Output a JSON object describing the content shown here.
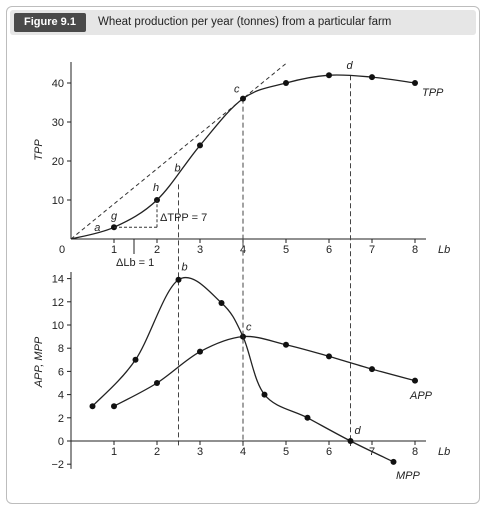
{
  "figure": {
    "label": "Figure 9.1",
    "title": "Wheat production per year (tonnes) from a particular farm"
  },
  "chart_data": [
    {
      "type": "line",
      "title": "",
      "ylabel": "TPP",
      "xlabel": "Lb",
      "xlim": [
        0,
        8.6
      ],
      "ylim": [
        0,
        45
      ],
      "xticks": [
        1,
        2,
        3,
        4,
        5,
        6,
        7,
        8
      ],
      "yticks": [
        10,
        20,
        30,
        40
      ],
      "origin_label": "0",
      "series": [
        {
          "name": "TPP",
          "x": [
            0,
            1,
            2,
            3,
            4,
            5,
            6,
            7,
            8
          ],
          "y": [
            0,
            3,
            10,
            24,
            36,
            40,
            42,
            41.5,
            40
          ]
        }
      ],
      "points": [
        {
          "label": "a",
          "x": 0.4,
          "y": 1
        },
        {
          "label": "g",
          "x": 1,
          "y": 3
        },
        {
          "label": "h",
          "x": 2,
          "y": 10
        },
        {
          "label": "b",
          "x": 2.5,
          "y": 16
        },
        {
          "label": "c",
          "x": 4,
          "y": 36
        },
        {
          "label": "d",
          "x": 6.5,
          "y": 42
        }
      ],
      "annotations": {
        "delta_tpp": "ΔTPP = 7",
        "delta_lb": "ΔLb = 1"
      }
    },
    {
      "type": "line",
      "title": "",
      "ylabel": "APP, MPP",
      "xlabel": "Lb",
      "xlim": [
        0,
        8.6
      ],
      "ylim": [
        -3,
        14.5
      ],
      "xticks": [
        1,
        2,
        3,
        4,
        5,
        6,
        7,
        8
      ],
      "yticks": [
        -2,
        0,
        2,
        4,
        6,
        8,
        10,
        12,
        14
      ],
      "series": [
        {
          "name": "APP",
          "x": [
            1,
            2,
            3,
            4,
            5,
            6,
            7,
            8
          ],
          "y": [
            3,
            5,
            7.7,
            9,
            8.3,
            7.3,
            6.2,
            5.2
          ]
        },
        {
          "name": "MPP",
          "x": [
            0.5,
            1.5,
            2.5,
            3.5,
            4.5,
            5.5,
            6.5,
            7.5
          ],
          "y": [
            3,
            7,
            13.9,
            11.9,
            4,
            2,
            0,
            -1.8
          ]
        }
      ],
      "points": [
        {
          "label": "b",
          "x": 2.5,
          "y": 14
        },
        {
          "label": "c",
          "x": 4,
          "y": 9
        },
        {
          "label": "d",
          "x": 6.5,
          "y": 0
        }
      ]
    }
  ]
}
